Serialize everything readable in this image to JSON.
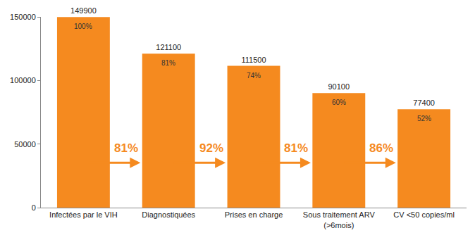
{
  "chart_data": {
    "type": "bar",
    "categories": [
      "Infectées par le VIH",
      "Diagnostiquées",
      "Prises en charge",
      "Sous traitement ARV\n(>6mois)",
      "CV <50 copies/ml"
    ],
    "values": [
      149900,
      121100,
      111500,
      90100,
      77400
    ],
    "data_labels": true,
    "percent_of_infected": [
      100,
      81,
      74,
      60,
      52
    ],
    "percent_labels": [
      "100%",
      "81%",
      "74%",
      "60%",
      "52%"
    ],
    "transition_rates": [
      81,
      92,
      81,
      86
    ],
    "transition_labels": [
      "81%",
      "92%",
      "81%",
      "86%"
    ],
    "color": "#f58a1f",
    "ylim": [
      0,
      150000
    ],
    "yticks": [
      0,
      50000,
      100000,
      150000
    ],
    "grid": false
  }
}
